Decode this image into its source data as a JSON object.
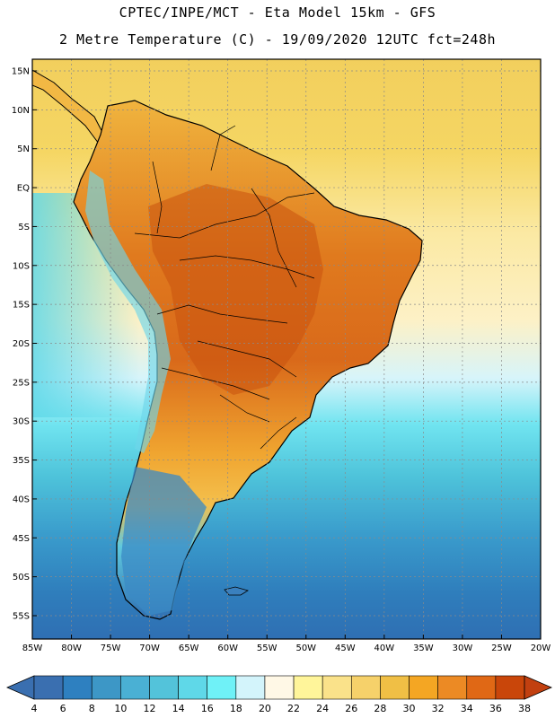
{
  "title": {
    "line1": "CPTEC/INPE/MCT -  Eta Model 15km - GFS",
    "line2": "2 Metre Temperature (C) - 19/09/2020 12UTC fct=248h"
  },
  "map": {
    "lon_range": [
      -85,
      -20
    ],
    "lat_range": [
      -58,
      16.5
    ],
    "lat_ticks": [
      {
        "lat": 15,
        "label": "15N"
      },
      {
        "lat": 10,
        "label": "10N"
      },
      {
        "lat": 5,
        "label": "5N"
      },
      {
        "lat": 0,
        "label": "EQ"
      },
      {
        "lat": -5,
        "label": "5S"
      },
      {
        "lat": -10,
        "label": "10S"
      },
      {
        "lat": -15,
        "label": "15S"
      },
      {
        "lat": -20,
        "label": "20S"
      },
      {
        "lat": -25,
        "label": "25S"
      },
      {
        "lat": -30,
        "label": "30S"
      },
      {
        "lat": -35,
        "label": "35S"
      },
      {
        "lat": -40,
        "label": "40S"
      },
      {
        "lat": -45,
        "label": "45S"
      },
      {
        "lat": -50,
        "label": "50S"
      },
      {
        "lat": -55,
        "label": "55S"
      }
    ],
    "lon_ticks": [
      {
        "lon": -85,
        "label": "85W"
      },
      {
        "lon": -80,
        "label": "80W"
      },
      {
        "lon": -75,
        "label": "75W"
      },
      {
        "lon": -70,
        "label": "70W"
      },
      {
        "lon": -65,
        "label": "65W"
      },
      {
        "lon": -60,
        "label": "60W"
      },
      {
        "lon": -55,
        "label": "55W"
      },
      {
        "lon": -50,
        "label": "50W"
      },
      {
        "lon": -45,
        "label": "45W"
      },
      {
        "lon": -40,
        "label": "40W"
      },
      {
        "lon": -35,
        "label": "35W"
      },
      {
        "lon": -30,
        "label": "30W"
      },
      {
        "lon": -25,
        "label": "25W"
      },
      {
        "lon": -20,
        "label": "20W"
      }
    ]
  },
  "colorbar": {
    "labels": [
      "4",
      "6",
      "8",
      "10",
      "12",
      "14",
      "16",
      "18",
      "20",
      "22",
      "24",
      "26",
      "28",
      "30",
      "32",
      "34",
      "36",
      "38"
    ],
    "colors": [
      "#3a6fb0",
      "#2e80c0",
      "#3d97c6",
      "#4ab0d4",
      "#53c3da",
      "#5fd8e8",
      "#6ff1f7",
      "#d3f4fb",
      "#fff8e6",
      "#fff59a",
      "#fae28a",
      "#f6d16a",
      "#f0bf45",
      "#f4a623",
      "#ec8a24",
      "#e06815",
      "#c9460a"
    ],
    "low_color": "#3a6fb0",
    "high_color": "#c24010"
  }
}
